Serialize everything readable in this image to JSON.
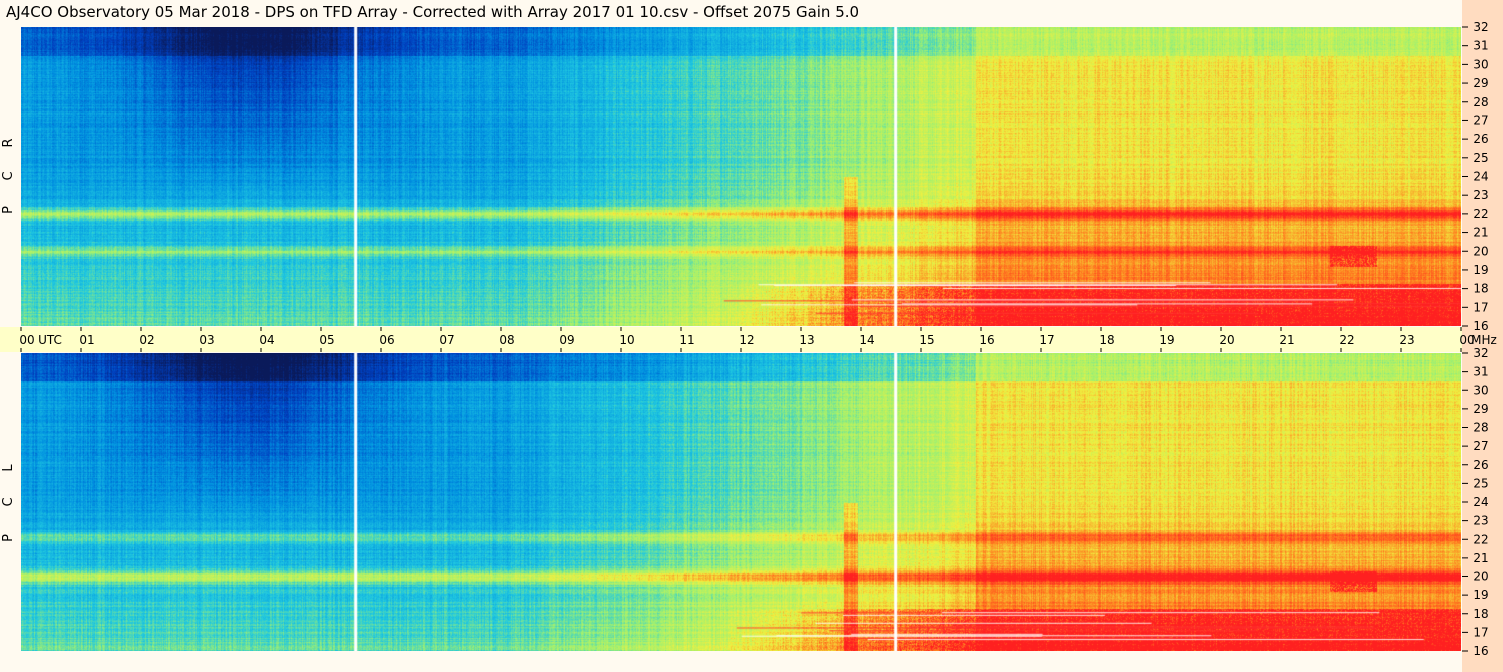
{
  "title": "AJ4CO Observatory  05 Mar 2018  -  DPS on TFD Array  -  Corrected with Array 2017 01 10.csv  -  Offset 2075  Gain 5.0",
  "chart_data": [
    {
      "type": "heatmap",
      "panel": "RCP",
      "panel_label": [
        "R",
        "C",
        "P"
      ],
      "x_unit": "UTC",
      "y_unit": "MHz",
      "x_ticks": [
        "00",
        "01",
        "02",
        "03",
        "04",
        "05",
        "06",
        "07",
        "08",
        "09",
        "10",
        "11",
        "12",
        "13",
        "14",
        "15",
        "16",
        "17",
        "18",
        "19",
        "20",
        "21",
        "22",
        "23",
        "00"
      ],
      "y_ticks": [
        "32",
        "31",
        "30",
        "29",
        "28",
        "27",
        "26",
        "25",
        "24",
        "23",
        "22",
        "21",
        "20",
        "19",
        "18",
        "17",
        "16"
      ],
      "xlim": [
        0,
        24
      ],
      "ylim": [
        16,
        32
      ],
      "vertical_markers_utc": [
        5.57,
        14.57
      ],
      "colormap": [
        "#0a1a5a",
        "#0040c0",
        "#0090e0",
        "#20c8e0",
        "#a0f070",
        "#f0f040",
        "#ff8020",
        "#ff2020"
      ]
    },
    {
      "type": "heatmap",
      "panel": "LCP",
      "panel_label": [
        "L",
        "C",
        "P"
      ],
      "x_unit": "UTC",
      "y_unit": "MHz",
      "x_ticks": [
        "00",
        "01",
        "02",
        "03",
        "04",
        "05",
        "06",
        "07",
        "08",
        "09",
        "10",
        "11",
        "12",
        "13",
        "14",
        "15",
        "16",
        "17",
        "18",
        "19",
        "20",
        "21",
        "22",
        "23",
        "00"
      ],
      "y_ticks": [
        "32",
        "31",
        "30",
        "29",
        "28",
        "27",
        "26",
        "25",
        "24",
        "23",
        "22",
        "21",
        "20",
        "19",
        "18",
        "17",
        "16"
      ],
      "xlim": [
        0,
        24
      ],
      "ylim": [
        16,
        32
      ],
      "vertical_markers_utc": [
        5.57,
        14.57
      ],
      "colormap": [
        "#0a1a5a",
        "#0040c0",
        "#0090e0",
        "#20c8e0",
        "#a0f070",
        "#f0f040",
        "#ff8020",
        "#ff2020"
      ]
    }
  ]
}
